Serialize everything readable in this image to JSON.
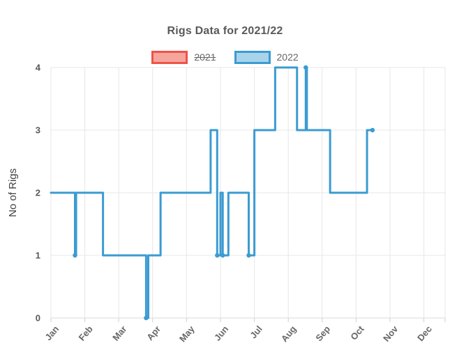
{
  "chart_data": {
    "type": "line",
    "stepped": true,
    "title": "Rigs Data for 2021/22",
    "ylabel": "No of Rigs",
    "xlabel": "",
    "ylim": [
      0,
      4
    ],
    "yticks": [
      0,
      1,
      2,
      3,
      4
    ],
    "x_categories": [
      "Jan",
      "Feb",
      "Mar",
      "Apr",
      "May",
      "Jun",
      "Jul",
      "Aug",
      "Sep",
      "Oct",
      "Nov",
      "Dec"
    ],
    "grid": true,
    "legend": {
      "position": "top",
      "items": [
        "2021",
        "2022"
      ]
    },
    "series": [
      {
        "name": "2021",
        "hidden": true,
        "border_color": "#EF5348",
        "fill_color": "#F6A59C",
        "points": []
      },
      {
        "name": "2022",
        "hidden": false,
        "border_color": "#3B9BD2",
        "fill_color": "#A9D3EA",
        "points": [
          {
            "date": "2022-01-01",
            "value": 2
          },
          {
            "date": "2022-01-23",
            "value": 1,
            "dot": true
          },
          {
            "date": "2022-01-24",
            "value": 2
          },
          {
            "date": "2022-02-16",
            "value": 1
          },
          {
            "date": "2022-03-26",
            "value": 0,
            "dot": true
          },
          {
            "date": "2022-03-28",
            "value": 1
          },
          {
            "date": "2022-04-08",
            "value": 2
          },
          {
            "date": "2022-05-23",
            "value": 3
          },
          {
            "date": "2022-05-29",
            "value": 1,
            "dot": true
          },
          {
            "date": "2022-06-01",
            "value": 2
          },
          {
            "date": "2022-06-03",
            "value": 1,
            "dot": true
          },
          {
            "date": "2022-06-08",
            "value": 2
          },
          {
            "date": "2022-06-26",
            "value": 1,
            "dot": true
          },
          {
            "date": "2022-07-01",
            "value": 3
          },
          {
            "date": "2022-07-20",
            "value": 4
          },
          {
            "date": "2022-08-09",
            "value": 3
          },
          {
            "date": "2022-08-17",
            "value": 4,
            "dot": true
          },
          {
            "date": "2022-08-18",
            "value": 3
          },
          {
            "date": "2022-09-08",
            "value": 2
          },
          {
            "date": "2022-10-11",
            "value": 3
          },
          {
            "date": "2022-10-16",
            "value": 3,
            "dot": true
          }
        ]
      }
    ]
  }
}
